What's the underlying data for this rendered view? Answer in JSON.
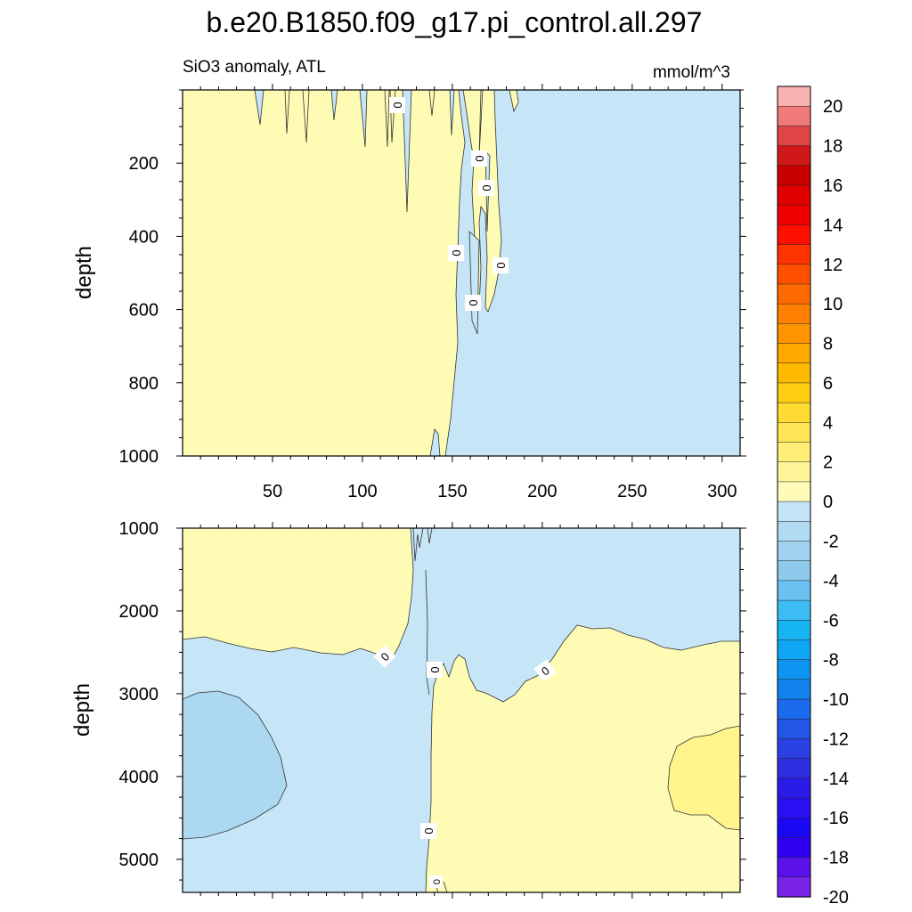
{
  "chart_data": {
    "type": "contour",
    "title": "b.e20.B1850.f09_g17.pi_control.all.297",
    "subtitle_left": "SiO3 anomaly, ATL",
    "subtitle_right": "mmol/m^3",
    "panels": [
      {
        "name": "upper",
        "ylabel": "depth",
        "ylim": [
          0,
          1000
        ],
        "y_reversed": true,
        "yticks": [
          200,
          400,
          600,
          800,
          1000
        ],
        "xlim": [
          0,
          310
        ],
        "xticks": [
          50,
          100,
          150,
          200,
          250,
          300
        ],
        "zero_contour_labels": [
          "0",
          "0",
          "0",
          "0",
          "0",
          "0"
        ]
      },
      {
        "name": "lower",
        "ylabel": "depth",
        "ylim": [
          1000,
          5400
        ],
        "y_reversed": true,
        "yticks": [
          1000,
          2000,
          3000,
          4000,
          5000
        ],
        "xlim": [
          0,
          310
        ],
        "xticks": [
          50,
          100,
          150,
          200,
          250,
          300
        ],
        "zero_contour_labels": [
          "0",
          "0",
          "0",
          "0",
          "0"
        ]
      }
    ],
    "colorbar": {
      "levels": [
        20,
        18,
        16,
        14,
        12,
        10,
        8,
        6,
        4,
        2,
        0,
        -2,
        -4,
        -6,
        -8,
        -10,
        -12,
        -14,
        -16,
        -18,
        -20
      ],
      "labels": [
        "20",
        "18",
        "16",
        "14",
        "12",
        "10",
        "8",
        "6",
        "4",
        "2",
        "0",
        "-2",
        "-4",
        "-6",
        "-8",
        "-10",
        "-12",
        "-14",
        "-16",
        "-18",
        "-20"
      ],
      "colors": [
        "#f9b3b3",
        "#f07a7a",
        "#e04545",
        "#d11818",
        "#c80000",
        "#e00000",
        "#f00000",
        "#ff0f00",
        "#ff3300",
        "#ff5000",
        "#ff6a00",
        "#ff8000",
        "#ff9400",
        "#ffa800",
        "#ffbb00",
        "#ffcc11",
        "#ffdb33",
        "#ffe555",
        "#ffee77",
        "#fff599",
        "#fffbb8",
        "#c4e4f5",
        "#b1dbf1",
        "#9fd2ee",
        "#8dcaec",
        "#6bc2f0",
        "#3cbcf3",
        "#18b5f3",
        "#0fa7f3",
        "#0e95f2",
        "#1282ef",
        "#1b6cec",
        "#2355e7",
        "#2b40e2",
        "#2e2ddf",
        "#2a1be8",
        "#2a10f2",
        "#1a08f5",
        "#2f00f0",
        "#5a10e8",
        "#7a22e6"
      ]
    },
    "fills": {
      "positive_0_1": "#fefbb4",
      "positive_1_2": "#fff58c",
      "negative_0_1": "#c6e5f6",
      "negative_1_2": "#acd9f1"
    }
  }
}
